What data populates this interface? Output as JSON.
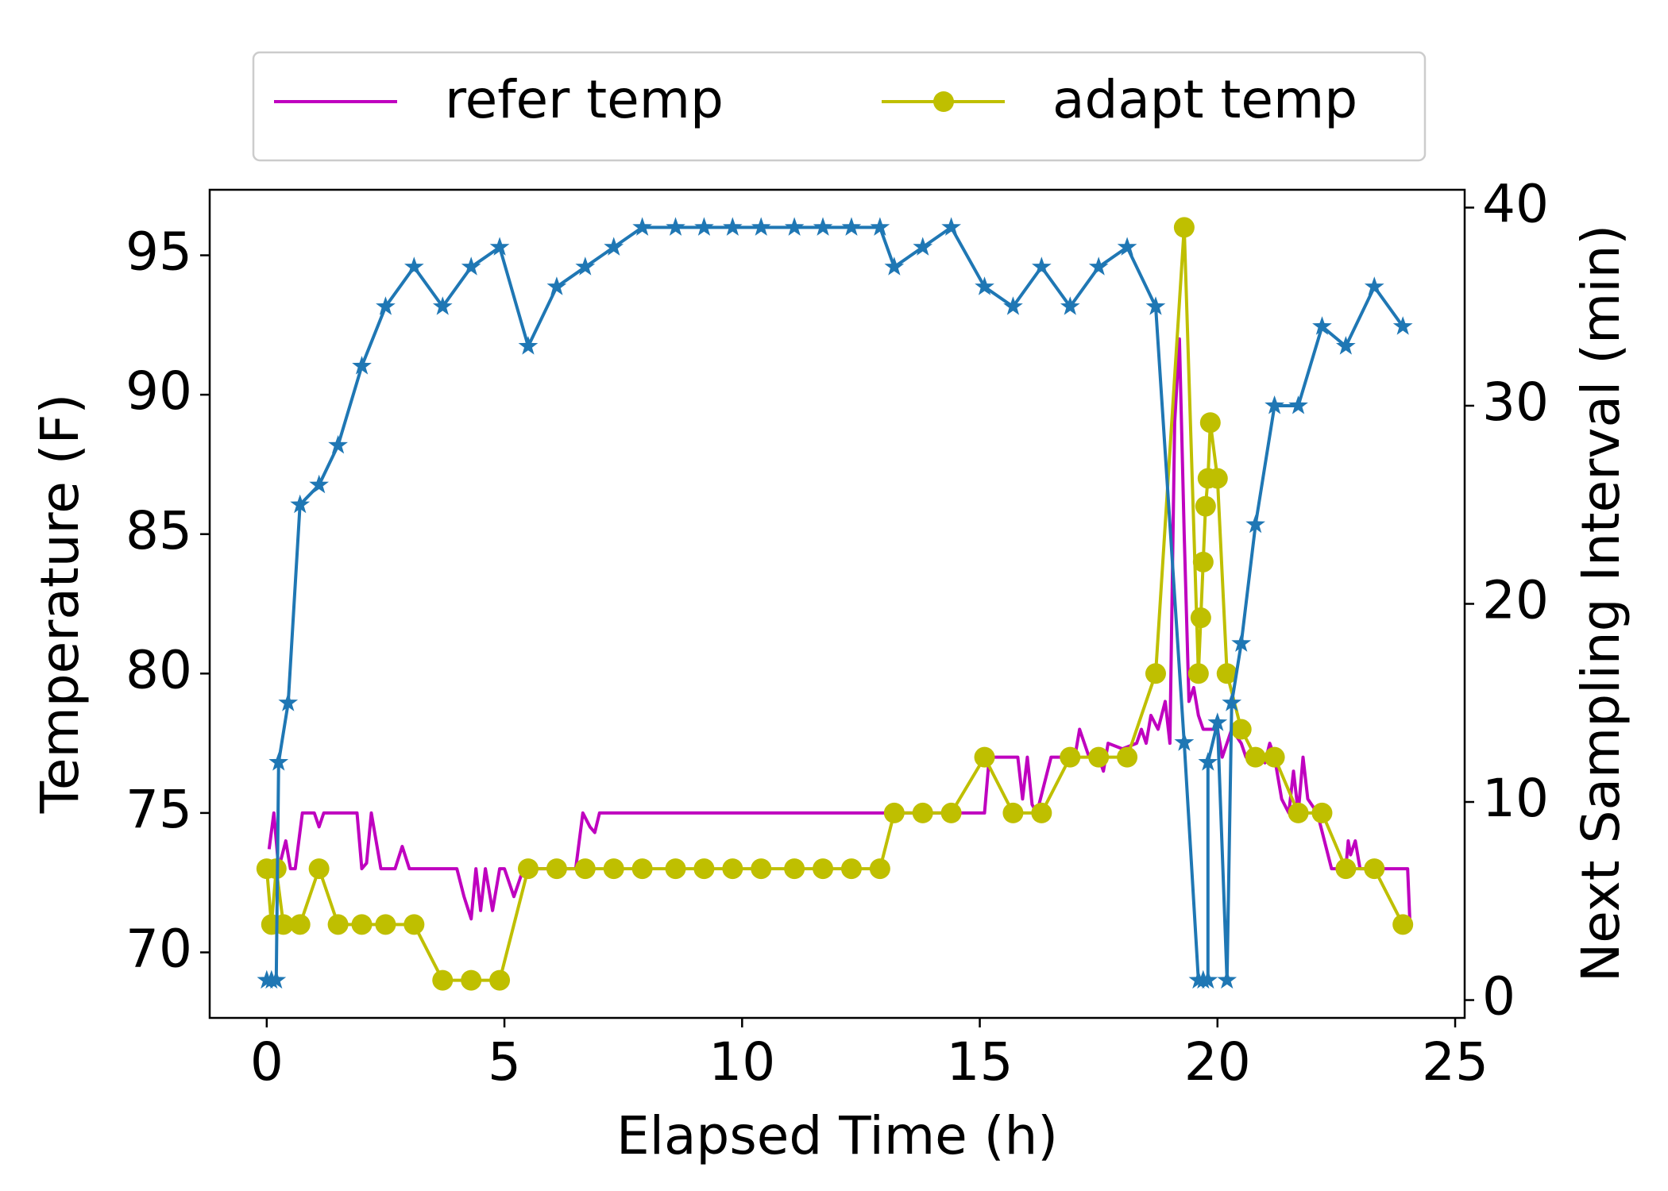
{
  "chart_data": {
    "type": "line",
    "xlabel": "Elapsed Time (h)",
    "ylabel": "Temperature (F)",
    "y2label": "Next Sampling Interval (min)",
    "xlim": [
      -1.2,
      25.2
    ],
    "xticks": [
      0,
      5,
      10,
      15,
      20,
      25
    ],
    "ylim": [
      67.65,
      97.35
    ],
    "yticks": [
      70,
      75,
      80,
      85,
      90,
      95
    ],
    "y2lim": [
      -0.9,
      40.9
    ],
    "y2ticks": [
      0,
      10,
      20,
      30,
      40
    ],
    "y2color": "#1f77b4",
    "legend": "upper center outside",
    "series": [
      {
        "name": "refer temp",
        "color": "#bf00bf",
        "marker": "none",
        "x": [
          0.05,
          0.15,
          0.25,
          0.4,
          0.5,
          0.6,
          0.75,
          1.0,
          1.1,
          1.2,
          1.5,
          1.9,
          2.0,
          2.1,
          2.2,
          2.3,
          2.4,
          2.7,
          2.85,
          3.0,
          3.5,
          4.0,
          4.15,
          4.3,
          4.4,
          4.5,
          4.6,
          4.75,
          4.9,
          5.0,
          5.2,
          5.4,
          6.0,
          6.5,
          6.65,
          6.8,
          6.9,
          7.0,
          10.0,
          15.1,
          15.2,
          15.8,
          15.9,
          16.0,
          16.1,
          16.2,
          16.5,
          17.0,
          17.1,
          17.3,
          17.5,
          17.6,
          17.7,
          18.0,
          18.3,
          18.4,
          18.5,
          18.6,
          18.75,
          18.9,
          19.0,
          19.1,
          19.2,
          19.3,
          19.4,
          19.5,
          19.6,
          19.7,
          20.0,
          20.1,
          20.3,
          20.5,
          20.6,
          20.9,
          21.0,
          21.1,
          21.2,
          21.35,
          21.5,
          21.6,
          21.7,
          21.8,
          21.9,
          22.1,
          22.4,
          22.7,
          22.75,
          22.8,
          22.9,
          23.0,
          23.5,
          24.0,
          24.05
        ],
        "values": [
          73.7,
          75,
          73,
          74,
          73,
          73,
          75,
          75,
          74.5,
          75,
          75,
          75,
          73,
          73.2,
          75,
          74,
          73,
          73,
          73.8,
          73,
          73,
          73,
          72,
          71.2,
          73,
          71.5,
          73,
          71.5,
          73,
          73,
          72,
          73,
          73,
          73,
          75,
          74.5,
          74.3,
          75,
          75,
          75,
          77,
          77,
          75.5,
          77,
          75.3,
          75,
          77,
          77,
          78,
          77,
          77,
          76.5,
          77.5,
          77.3,
          77.5,
          78,
          77.5,
          78.5,
          78,
          79,
          77.5,
          89,
          92,
          85,
          79,
          79.5,
          78.5,
          78,
          78,
          77,
          78,
          77.5,
          77,
          77,
          76.8,
          77.5,
          77,
          75.5,
          75,
          76.5,
          75,
          77,
          75.5,
          75,
          73,
          73,
          74,
          73.5,
          74,
          73,
          73,
          73,
          71
        ]
      },
      {
        "name": "adapt temp",
        "color": "#bfbf00",
        "marker": "circle",
        "x": [
          0,
          0.1,
          0.2,
          0.35,
          0.7,
          1.1,
          1.5,
          2.0,
          2.5,
          3.1,
          3.7,
          4.3,
          4.9,
          5.5,
          6.1,
          6.7,
          7.3,
          7.9,
          8.6,
          9.2,
          9.8,
          10.4,
          11.1,
          11.7,
          12.3,
          12.9,
          13.2,
          13.8,
          14.4,
          15.1,
          15.7,
          16.3,
          16.9,
          17.5,
          18.1,
          18.7,
          19.3,
          19.6,
          19.65,
          19.7,
          19.75,
          19.8,
          19.85,
          20.0,
          20.2,
          20.5,
          20.8,
          21.2,
          21.7,
          22.2,
          22.7,
          23.3,
          23.9
        ],
        "values": [
          73,
          71,
          73,
          71,
          71,
          73,
          71,
          71,
          71,
          71,
          69,
          69,
          69,
          73,
          73,
          73,
          73,
          73,
          73,
          73,
          73,
          73,
          73,
          73,
          73,
          73,
          75,
          75,
          75,
          77,
          75,
          75,
          77,
          77,
          77,
          80,
          96,
          80,
          82,
          84,
          86,
          87,
          89,
          87,
          80,
          78,
          77,
          77,
          75,
          75,
          73,
          73,
          71
        ]
      },
      {
        "color": "#1f77b4",
        "marker": "star",
        "axis": "y2",
        "x": [
          0,
          0.1,
          0.2,
          0.25,
          0.45,
          0.7,
          1.1,
          1.5,
          2.0,
          2.5,
          3.1,
          3.7,
          4.3,
          4.9,
          5.5,
          6.1,
          6.7,
          7.3,
          7.9,
          8.6,
          9.2,
          9.8,
          10.4,
          11.1,
          11.7,
          12.3,
          12.9,
          13.2,
          13.8,
          14.4,
          15.1,
          15.7,
          16.3,
          16.9,
          17.5,
          18.1,
          18.7,
          19.3,
          19.6,
          19.7,
          19.8,
          19.8,
          20.0,
          20.2,
          20.3,
          20.5,
          20.8,
          21.2,
          21.7,
          22.2,
          22.7,
          23.3,
          23.9
        ],
        "values": [
          1,
          1,
          1,
          12,
          15,
          25,
          26,
          28,
          32,
          35,
          37,
          35,
          37,
          38,
          33,
          36,
          37,
          38,
          39,
          39,
          39,
          39,
          39,
          39,
          39,
          39,
          39,
          37,
          38,
          39,
          36,
          35,
          37,
          35,
          37,
          38,
          35,
          13,
          1,
          1,
          1,
          12,
          14,
          1,
          15,
          18,
          24,
          30,
          30,
          34,
          33,
          36,
          34
        ]
      }
    ]
  }
}
